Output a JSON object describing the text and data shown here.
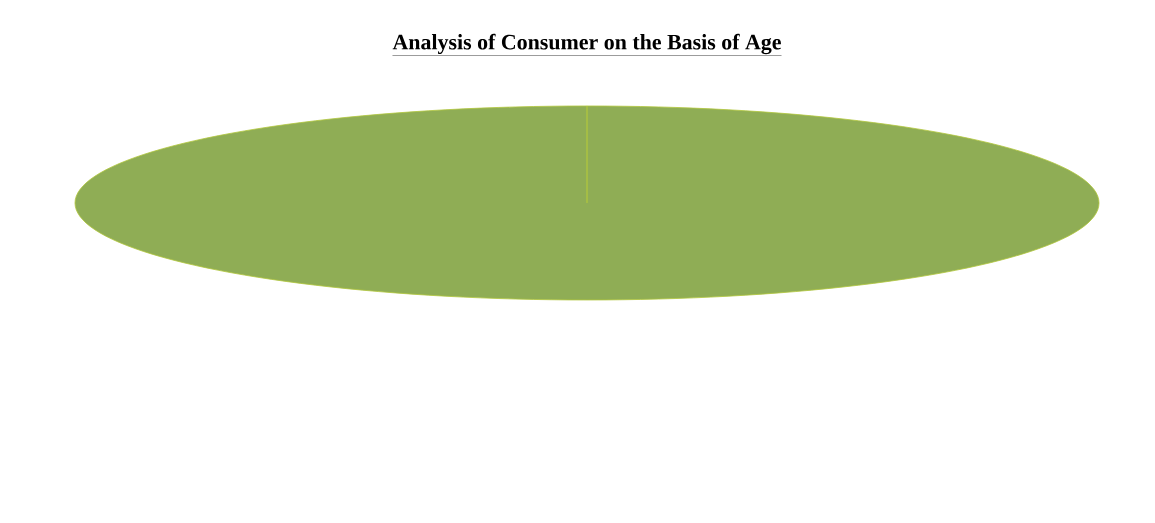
{
  "chart_data": {
    "type": "pie",
    "title": "Analysis of Consumer on the Basis of Age",
    "categories": [
      null
    ],
    "values": [
      100
    ],
    "colors": [
      "#8fad55"
    ]
  }
}
